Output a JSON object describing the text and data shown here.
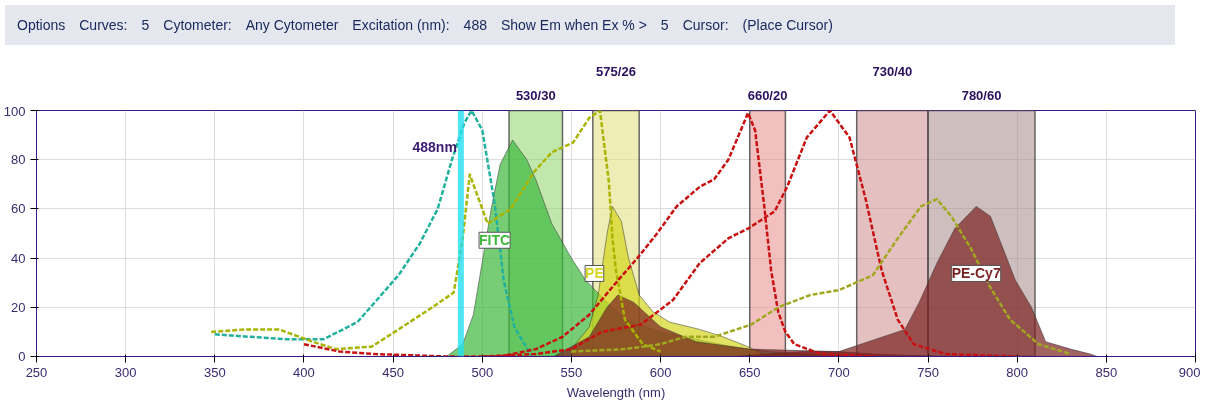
{
  "chart_data": {
    "type": "line",
    "xlabel": "Wavelength (nm)",
    "xlim": [
      250,
      900
    ],
    "ylim": [
      0,
      100
    ],
    "xticks": [
      250,
      300,
      350,
      400,
      450,
      500,
      550,
      600,
      650,
      700,
      750,
      800,
      850,
      900
    ],
    "yticks": [
      0,
      20,
      40,
      60,
      80,
      100
    ],
    "grid": true,
    "legend": false,
    "annotations": [
      "Options",
      "Curves:",
      "5",
      "Cytometer:",
      "Any Cytometer",
      "Excitation (nm):",
      "488",
      "Show Em when Ex % >",
      "5",
      "Cursor:",
      "(Place Cursor)"
    ],
    "ref_lines": [
      {
        "axis": "x",
        "value": 488,
        "label": "488nm",
        "color": "#22e0f0"
      }
    ],
    "bands": [
      {
        "axis": "x",
        "from": 515,
        "to": 545,
        "label": "530/30",
        "color": "#8fd46a"
      },
      {
        "axis": "x",
        "from": 562,
        "to": 588,
        "label": "575/26",
        "color": "#dede78"
      },
      {
        "axis": "x",
        "from": 650,
        "to": 670,
        "label": "660/20",
        "color": "#ea8c8c"
      },
      {
        "axis": "x",
        "from": 710,
        "to": 750,
        "label": "730/40",
        "color": "#d08c8c"
      },
      {
        "axis": "x",
        "from": 750,
        "to": 810,
        "label": "780/60",
        "color": "#a88888"
      }
    ],
    "series": [
      {
        "line_style": "dashed",
        "color": "#20b29c",
        "x": [
          350,
          370,
          390,
          400,
          411,
          430,
          453,
          465,
          475,
          483,
          490,
          494,
          500,
          507,
          512,
          518,
          522,
          528
        ],
        "values": [
          9,
          8,
          7,
          7,
          7,
          14,
          33,
          46,
          60,
          80,
          95,
          100,
          92,
          62,
          31,
          12,
          7,
          0
        ]
      },
      {
        "line_style": "dashed",
        "color": "#a8b400",
        "x": [
          348,
          367,
          386,
          405,
          418,
          438,
          453,
          472,
          484,
          489,
          493,
          503,
          516,
          529,
          539,
          551,
          560,
          566,
          571,
          573,
          575,
          580,
          590,
          600
        ],
        "values": [
          10,
          11,
          11,
          6,
          3,
          4,
          11,
          20,
          26,
          48,
          74,
          54,
          60,
          75,
          83,
          87,
          97,
          100,
          71,
          48,
          35,
          15,
          5,
          2
        ]
      },
      {
        "line_style": "dashed",
        "color": "#c81010",
        "x": [
          400,
          420,
          440,
          480,
          510,
          530,
          545,
          560,
          575,
          587,
          598,
          609,
          622,
          630,
          638,
          645,
          649,
          653,
          658,
          662,
          666,
          670,
          675,
          690,
          720
        ],
        "values": [
          5,
          2,
          1,
          0,
          0,
          3,
          8,
          17,
          30,
          40,
          50,
          61,
          69,
          72,
          80,
          92,
          99,
          92,
          62,
          35,
          18,
          10,
          5,
          1,
          0
        ]
      },
      {
        "line_style": "dashed",
        "color": "#c81010",
        "x": [
          500,
          530,
          550,
          567,
          589,
          607,
          622,
          638,
          649,
          664,
          671,
          682,
          695,
          706,
          715,
          724,
          733,
          742,
          760,
          800
        ],
        "values": [
          0,
          1,
          3,
          10,
          13,
          23,
          38,
          48,
          52,
          59,
          69,
          89,
          100,
          89,
          64,
          35,
          15,
          5,
          1,
          0
        ]
      },
      {
        "line_style": "dashed",
        "color": "#a0a820",
        "x": [
          550,
          580,
          600,
          614,
          630,
          651,
          666,
          684,
          700,
          719,
          733,
          746,
          755,
          763,
          774,
          785,
          796,
          812,
          830
        ],
        "values": [
          2,
          3,
          5,
          8,
          8,
          13,
          20,
          25,
          27,
          33,
          48,
          61,
          64,
          57,
          44,
          28,
          15,
          5,
          1
        ]
      },
      {
        "type": "area",
        "name": "FITC",
        "color": "#3cb83c",
        "x": [
          480,
          489,
          495,
          505,
          510,
          517,
          525,
          530,
          539,
          550,
          558,
          570,
          580,
          600,
          620,
          640,
          660,
          700
        ],
        "values": [
          0,
          5,
          17,
          60,
          78,
          88,
          80,
          72,
          54,
          40,
          31,
          22,
          15,
          10,
          7,
          4,
          2,
          0
        ]
      },
      {
        "type": "area",
        "name": "PE",
        "color": "#d6d620",
        "x": [
          550,
          560,
          565,
          570,
          573,
          578,
          582,
          588,
          596,
          605,
          622,
          635,
          649,
          660
        ],
        "values": [
          3,
          12,
          25,
          50,
          61,
          55,
          40,
          25,
          18,
          14,
          11,
          8,
          4,
          0
        ]
      },
      {
        "type": "area",
        "color": "#8a1010",
        "x": [
          640,
          660,
          680,
          700,
          720,
          760
        ],
        "values": [
          0,
          1,
          2,
          2,
          1,
          0
        ]
      },
      {
        "type": "area",
        "name": "PE-Cy7",
        "color": "#7a1f1f",
        "x": [
          540,
          560,
          570,
          576,
          585,
          600,
          620,
          650,
          700,
          737,
          745,
          755,
          765,
          777,
          785,
          799,
          808,
          816,
          830,
          841,
          845
        ],
        "values": [
          0,
          8,
          20,
          25,
          22,
          12,
          6,
          3,
          2,
          11,
          22,
          38,
          52,
          61,
          57,
          31,
          20,
          6,
          3,
          1,
          0
        ]
      }
    ]
  }
}
